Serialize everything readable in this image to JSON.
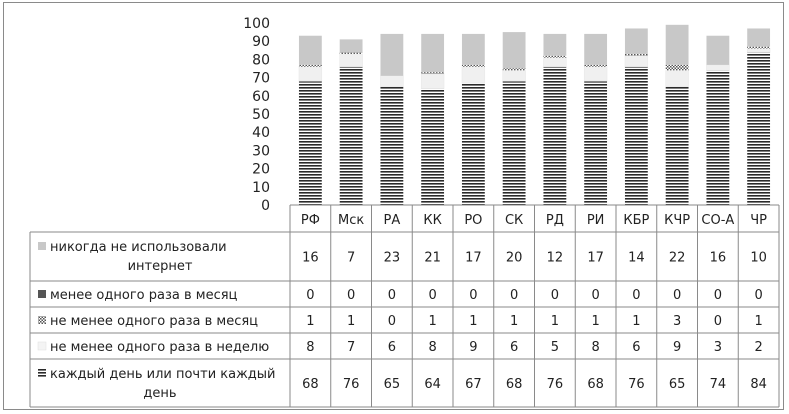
{
  "chart_data": {
    "type": "bar",
    "stacked": true,
    "categories": [
      "РФ",
      "Мск",
      "РА",
      "КК",
      "РО",
      "СК",
      "РД",
      "РИ",
      "КБР",
      "КЧР",
      "СО-А",
      "ЧР"
    ],
    "ylim": [
      0,
      100
    ],
    "yticks": [
      0,
      10,
      20,
      30,
      40,
      50,
      60,
      70,
      80,
      90,
      100
    ],
    "grid": false,
    "legend": "table-below",
    "series": [
      {
        "name": "никогда не использовали интернет",
        "name_lines": [
          "никогда не использовали",
          "интернет"
        ],
        "values": [
          16,
          7,
          23,
          21,
          17,
          20,
          12,
          17,
          14,
          22,
          16,
          10
        ],
        "pattern": "light-gray",
        "color": "#c8c8c8"
      },
      {
        "name": "менее одного раза в месяц",
        "name_lines": [
          "менее одного раза в месяц"
        ],
        "values": [
          0,
          0,
          0,
          0,
          0,
          0,
          0,
          0,
          0,
          0,
          0,
          0
        ],
        "pattern": "dark-gray",
        "color": "#555555"
      },
      {
        "name": "не менее одного раза в месяц",
        "name_lines": [
          "не менее одного раза в месяц"
        ],
        "values": [
          1,
          1,
          0,
          1,
          1,
          1,
          1,
          1,
          1,
          3,
          0,
          1
        ],
        "pattern": "checker",
        "color": "#777777"
      },
      {
        "name": "не менее одного раза в неделю",
        "name_lines": [
          "не менее одного раза в неделю"
        ],
        "values": [
          8,
          7,
          6,
          8,
          9,
          6,
          5,
          8,
          6,
          9,
          3,
          2
        ],
        "pattern": "very-light",
        "color": "#f0f0f0"
      },
      {
        "name": "каждый день или почти каждый день",
        "name_lines": [
          "каждый день или почти каждый",
          "день"
        ],
        "values": [
          68,
          76,
          65,
          64,
          67,
          68,
          76,
          68,
          76,
          65,
          74,
          84
        ],
        "pattern": "horizontal-stripes",
        "color": "#3a3a3a"
      }
    ]
  }
}
